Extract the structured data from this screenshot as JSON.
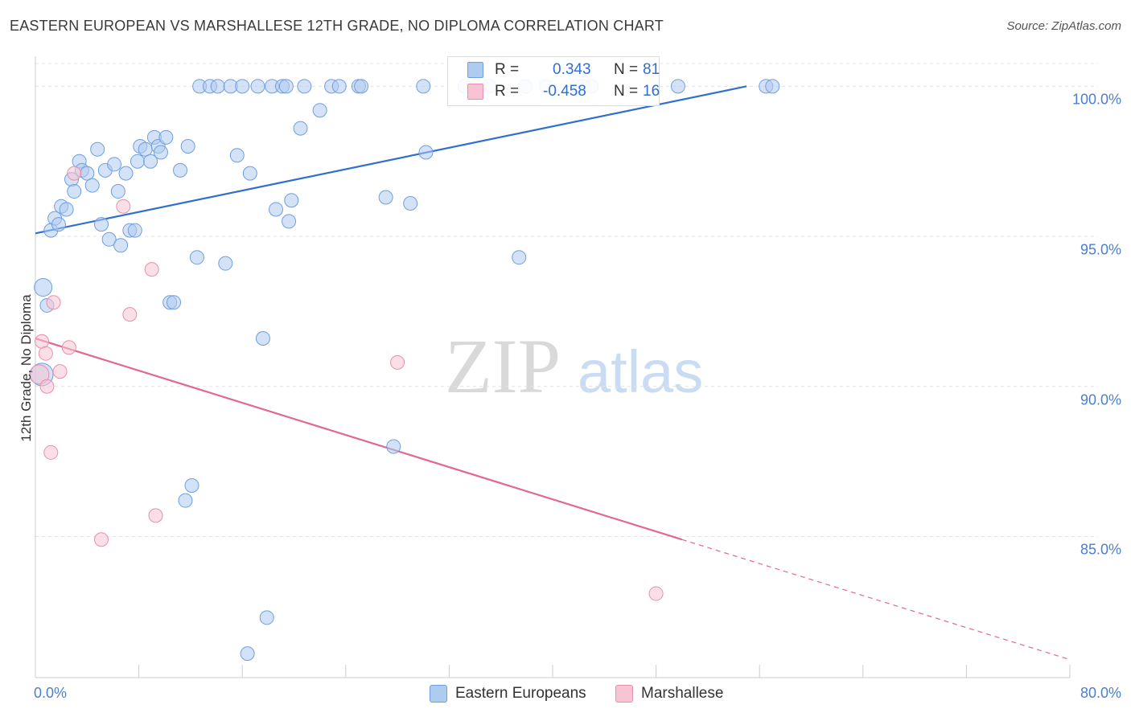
{
  "header": {
    "title": "EASTERN EUROPEAN VS MARSHALLESE 12TH GRADE, NO DIPLOMA CORRELATION CHART",
    "source": "Source: ZipAtlas.com"
  },
  "watermark": {
    "left": "ZIP",
    "right": "atlas"
  },
  "stats": [
    {
      "r_label": "R =",
      "r_value": "0.343",
      "n_label": "N =",
      "n_value": "81",
      "color": "#6f9fe0"
    },
    {
      "r_label": "R =",
      "r_value": "-0.458",
      "n_label": "N =",
      "n_value": "16",
      "color": "#e890aa"
    }
  ],
  "legend": [
    {
      "label": "Eastern Europeans",
      "color": "#aecbf0"
    },
    {
      "label": "Marshallese",
      "color": "#f8c4d4"
    }
  ],
  "chart_data": {
    "type": "scatter",
    "title": "EASTERN EUROPEAN VS MARSHALLESE 12TH GRADE, NO DIPLOMA CORRELATION CHART",
    "xlabel": "",
    "ylabel": "12th Grade, No Diploma",
    "xlim": [
      0,
      80
    ],
    "ylim": [
      80.3,
      101
    ],
    "x_tick_labels": [
      "0.0%",
      "80.0%"
    ],
    "y_ticks": [
      100,
      95,
      90,
      85
    ],
    "y_tick_labels": [
      "100.0%",
      "95.0%",
      "90.0%",
      "85.0%"
    ],
    "grid": true,
    "series": [
      {
        "name": "Eastern Europeans",
        "color": "#6f9fe0",
        "fill": "#aecbf0",
        "points": [
          [
            0.6,
            93.3
          ],
          [
            0.5,
            90.4
          ],
          [
            0.9,
            92.7
          ],
          [
            1.2,
            95.2
          ],
          [
            1.5,
            95.6
          ],
          [
            1.8,
            95.4
          ],
          [
            2.0,
            96.0
          ],
          [
            2.4,
            95.9
          ],
          [
            2.8,
            96.9
          ],
          [
            3.0,
            96.5
          ],
          [
            3.4,
            97.5
          ],
          [
            3.6,
            97.2
          ],
          [
            4.0,
            97.1
          ],
          [
            4.4,
            96.7
          ],
          [
            4.8,
            97.9
          ],
          [
            5.1,
            95.4
          ],
          [
            5.4,
            97.2
          ],
          [
            5.7,
            94.9
          ],
          [
            6.1,
            97.4
          ],
          [
            6.4,
            96.5
          ],
          [
            6.6,
            94.7
          ],
          [
            7.0,
            97.1
          ],
          [
            7.3,
            95.2
          ],
          [
            7.7,
            95.2
          ],
          [
            7.9,
            97.5
          ],
          [
            8.1,
            98.0
          ],
          [
            8.5,
            97.9
          ],
          [
            8.9,
            97.5
          ],
          [
            9.2,
            98.3
          ],
          [
            9.5,
            98.0
          ],
          [
            9.7,
            97.8
          ],
          [
            10.1,
            98.3
          ],
          [
            10.4,
            92.8
          ],
          [
            10.7,
            92.8
          ],
          [
            11.2,
            97.2
          ],
          [
            11.6,
            86.2
          ],
          [
            11.8,
            98.0
          ],
          [
            12.1,
            86.7
          ],
          [
            12.5,
            94.3
          ],
          [
            12.7,
            100.0
          ],
          [
            13.5,
            100.0
          ],
          [
            14.1,
            100.0
          ],
          [
            14.7,
            94.1
          ],
          [
            15.1,
            100.0
          ],
          [
            15.6,
            97.7
          ],
          [
            16.0,
            100.0
          ],
          [
            16.4,
            81.1
          ],
          [
            16.6,
            97.1
          ],
          [
            17.2,
            100.0
          ],
          [
            17.6,
            91.6
          ],
          [
            17.9,
            82.3
          ],
          [
            18.3,
            100.0
          ],
          [
            18.6,
            95.9
          ],
          [
            19.1,
            100.0
          ],
          [
            19.4,
            100.0
          ],
          [
            19.6,
            95.5
          ],
          [
            19.8,
            96.2
          ],
          [
            20.5,
            98.6
          ],
          [
            20.8,
            100.0
          ],
          [
            22.0,
            99.2
          ],
          [
            22.9,
            100.0
          ],
          [
            23.5,
            100.0
          ],
          [
            25.0,
            100.0
          ],
          [
            25.2,
            100.0
          ],
          [
            27.1,
            96.3
          ],
          [
            27.7,
            88.0
          ],
          [
            29.0,
            96.1
          ],
          [
            30.0,
            100.0
          ],
          [
            30.2,
            97.8
          ],
          [
            33.2,
            100.0
          ],
          [
            34.1,
            100.0
          ],
          [
            35.1,
            100.0
          ],
          [
            37.4,
            94.3
          ],
          [
            37.9,
            100.0
          ],
          [
            39.5,
            100.0
          ],
          [
            41.9,
            100.0
          ],
          [
            42.3,
            100.0
          ],
          [
            43.0,
            100.0
          ],
          [
            49.7,
            100.0
          ],
          [
            56.5,
            100.0
          ],
          [
            57.0,
            100.0
          ]
        ]
      },
      {
        "name": "Marshallese",
        "color": "#e890aa",
        "fill": "#f8c4d4",
        "points": [
          [
            0.3,
            90.4
          ],
          [
            0.5,
            91.5
          ],
          [
            0.8,
            91.1
          ],
          [
            0.9,
            90.0
          ],
          [
            1.2,
            87.8
          ],
          [
            1.4,
            92.8
          ],
          [
            1.9,
            90.5
          ],
          [
            2.6,
            91.3
          ],
          [
            3.0,
            97.1
          ],
          [
            5.1,
            84.9
          ],
          [
            6.8,
            96.0
          ],
          [
            7.3,
            92.4
          ],
          [
            9.0,
            93.9
          ],
          [
            9.3,
            85.7
          ],
          [
            28.0,
            90.8
          ],
          [
            48.0,
            83.1
          ]
        ]
      }
    ],
    "trend_lines": [
      {
        "series": "Eastern Europeans",
        "x0": 0,
        "y0": 95.1,
        "x1": 55,
        "y1": 100.0,
        "color": "#2f6fd0"
      },
      {
        "series": "Marshallese",
        "x0": 0,
        "y0": 91.6,
        "x1": 50,
        "y1": 84.9,
        "x2_dashed": 80,
        "y2_dashed": 80.9,
        "color": "#e2688f"
      }
    ],
    "stats": [
      {
        "series": "Eastern Europeans",
        "R": 0.343,
        "N": 81
      },
      {
        "series": "Marshallese",
        "R": -0.458,
        "N": 16
      }
    ]
  }
}
